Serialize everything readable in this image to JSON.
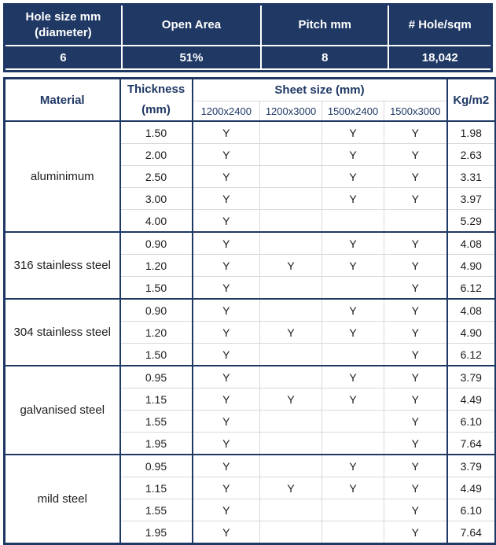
{
  "colors": {
    "navy": "#1f3864",
    "grid_light": "#d9d9d9",
    "body_text": "#1d1d1f",
    "summary_text": "#ffffff"
  },
  "summary": {
    "columns": [
      {
        "label": "Hole size mm\n(diameter)",
        "value": "6"
      },
      {
        "label": "Open Area",
        "value": "51%"
      },
      {
        "label": "Pitch mm",
        "value": "8"
      },
      {
        "label": "# Hole/sqm",
        "value": "18,042"
      }
    ]
  },
  "main_table": {
    "headers": {
      "material": "Material",
      "thickness": "Thickness\n(mm)",
      "sheet_size_group": "Sheet size (mm)",
      "sheet_sizes": [
        "1200x2400",
        "1200x3000",
        "1500x2400",
        "1500x3000"
      ],
      "weight": "Kg/m2"
    },
    "groups": [
      {
        "material": "aluminimum",
        "rows": [
          {
            "thickness": "1.50",
            "availability": [
              "Y",
              "",
              "Y",
              "Y"
            ],
            "weight": "1.98"
          },
          {
            "thickness": "2.00",
            "availability": [
              "Y",
              "",
              "Y",
              "Y"
            ],
            "weight": "2.63"
          },
          {
            "thickness": "2.50",
            "availability": [
              "Y",
              "",
              "Y",
              "Y"
            ],
            "weight": "3.31"
          },
          {
            "thickness": "3.00",
            "availability": [
              "Y",
              "",
              "Y",
              "Y"
            ],
            "weight": "3.97"
          },
          {
            "thickness": "4.00",
            "availability": [
              "Y",
              "",
              "",
              ""
            ],
            "weight": "5.29"
          }
        ]
      },
      {
        "material": "316 stainless steel",
        "rows": [
          {
            "thickness": "0.90",
            "availability": [
              "Y",
              "",
              "Y",
              "Y"
            ],
            "weight": "4.08"
          },
          {
            "thickness": "1.20",
            "availability": [
              "Y",
              "Y",
              "Y",
              "Y"
            ],
            "weight": "4.90"
          },
          {
            "thickness": "1.50",
            "availability": [
              "Y",
              "",
              "",
              "Y"
            ],
            "weight": "6.12"
          }
        ]
      },
      {
        "material": "304 stainless steel",
        "rows": [
          {
            "thickness": "0.90",
            "availability": [
              "Y",
              "",
              "Y",
              "Y"
            ],
            "weight": "4.08"
          },
          {
            "thickness": "1.20",
            "availability": [
              "Y",
              "Y",
              "Y",
              "Y"
            ],
            "weight": "4.90"
          },
          {
            "thickness": "1.50",
            "availability": [
              "Y",
              "",
              "",
              "Y"
            ],
            "weight": "6.12"
          }
        ]
      },
      {
        "material": "galvanised steel",
        "rows": [
          {
            "thickness": "0.95",
            "availability": [
              "Y",
              "",
              "Y",
              "Y"
            ],
            "weight": "3.79"
          },
          {
            "thickness": "1.15",
            "availability": [
              "Y",
              "Y",
              "Y",
              "Y"
            ],
            "weight": "4.49"
          },
          {
            "thickness": "1.55",
            "availability": [
              "Y",
              "",
              "",
              "Y"
            ],
            "weight": "6.10"
          },
          {
            "thickness": "1.95",
            "availability": [
              "Y",
              "",
              "",
              "Y"
            ],
            "weight": "7.64"
          }
        ]
      },
      {
        "material": "mild steel",
        "rows": [
          {
            "thickness": "0.95",
            "availability": [
              "Y",
              "",
              "Y",
              "Y"
            ],
            "weight": "3.79"
          },
          {
            "thickness": "1.15",
            "availability": [
              "Y",
              "Y",
              "Y",
              "Y"
            ],
            "weight": "4.49"
          },
          {
            "thickness": "1.55",
            "availability": [
              "Y",
              "",
              "",
              "Y"
            ],
            "weight": "6.10"
          },
          {
            "thickness": "1.95",
            "availability": [
              "Y",
              "",
              "",
              "Y"
            ],
            "weight": "7.64"
          }
        ]
      }
    ]
  }
}
